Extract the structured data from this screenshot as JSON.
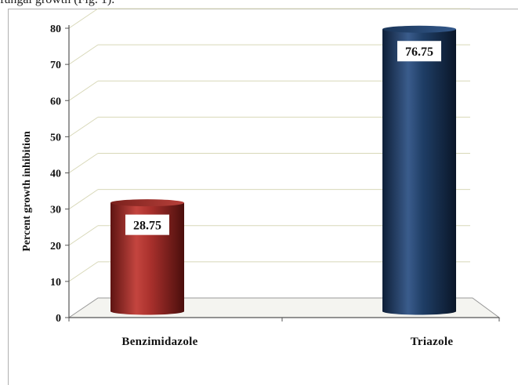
{
  "header_text": "fungal growth (Fig. 1).",
  "chart_data": {
    "type": "bar",
    "title": "",
    "xlabel": "",
    "ylabel": "Percent growth inhibition",
    "categories": [
      "Benzimidazole",
      "Triazole"
    ],
    "values": [
      28.75,
      76.75
    ],
    "data_labels": [
      "28.75",
      "76.75"
    ],
    "ylim": [
      0,
      80
    ],
    "yticks": [
      0,
      10,
      20,
      30,
      40,
      50,
      60,
      70,
      80
    ],
    "grid": true,
    "legend": "none",
    "colors": [
      "#a8302c",
      "#1f3e66"
    ]
  }
}
